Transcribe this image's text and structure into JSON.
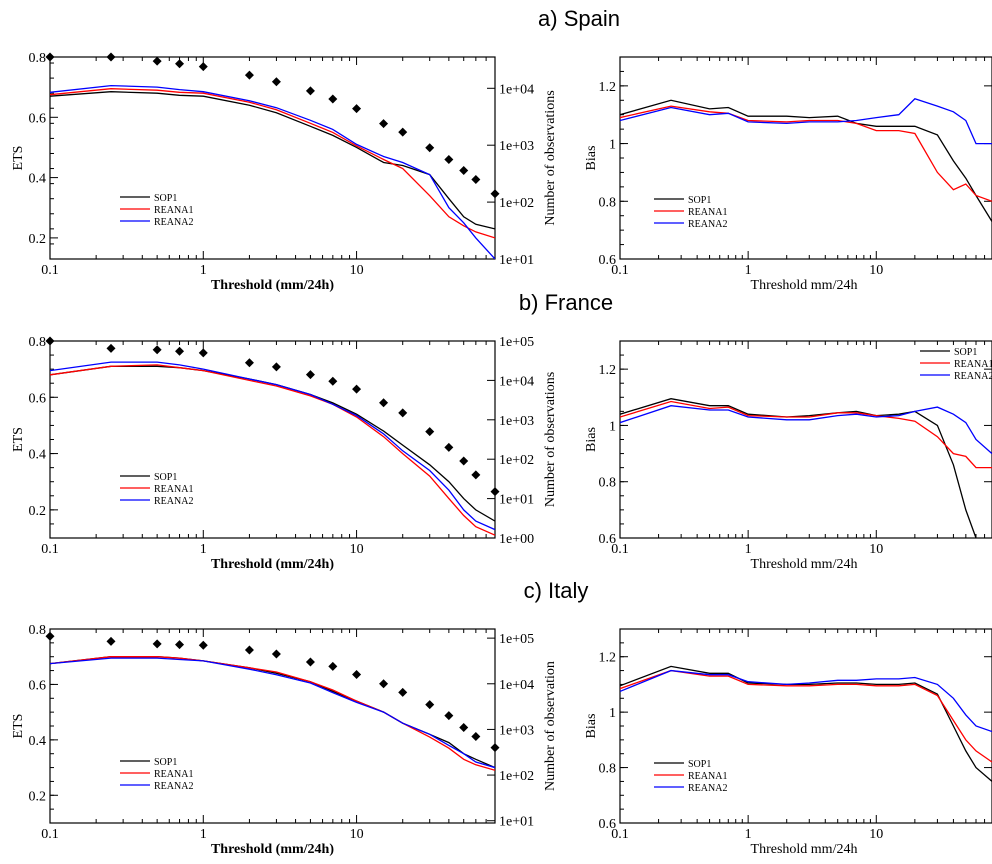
{
  "rows": [
    {
      "title": "a) Spain"
    },
    {
      "title": "b) France"
    },
    {
      "title": "c) Italy"
    }
  ],
  "colors": {
    "SOP1": "#000000",
    "REANA1": "#ff0000",
    "REANA2": "#0000ff",
    "observations": "#000000"
  },
  "chart_data": [
    {
      "type": "line",
      "panel": "a) Spain ETS",
      "xscale": "log",
      "xlim": [
        0.1,
        80
      ],
      "xticks": [
        "0.1",
        "1",
        "10"
      ],
      "xlabel": "Threshold (mm/24h)",
      "ylabel": "ETS",
      "ylim": [
        0.13,
        0.8
      ],
      "yticks": [
        "0.2",
        "0.4",
        "0.6",
        "0.8"
      ],
      "y2label": "Number of observations",
      "y2scale": "log",
      "y2ticks": [
        "1e+01",
        "1e+02",
        "1e+03",
        "1e+04"
      ],
      "legend_position": "lower-left",
      "x": [
        0.1,
        0.25,
        0.5,
        0.7,
        1,
        2,
        3,
        5,
        7,
        10,
        15,
        20,
        30,
        40,
        50,
        60,
        80
      ],
      "series": [
        {
          "name": "SOP1",
          "values": [
            0.67,
            0.685,
            0.68,
            0.673,
            0.67,
            0.64,
            0.615,
            0.57,
            0.54,
            0.5,
            0.45,
            0.44,
            0.41,
            0.33,
            0.27,
            0.245,
            0.23
          ]
        },
        {
          "name": "REANA1",
          "values": [
            0.675,
            0.695,
            0.69,
            0.683,
            0.68,
            0.65,
            0.625,
            0.58,
            0.55,
            0.505,
            0.46,
            0.43,
            0.34,
            0.27,
            0.24,
            0.22,
            0.2
          ]
        },
        {
          "name": "REANA2",
          "values": [
            0.683,
            0.705,
            0.7,
            0.692,
            0.685,
            0.655,
            0.632,
            0.59,
            0.56,
            0.51,
            0.47,
            0.45,
            0.41,
            0.3,
            0.25,
            0.2,
            0.13
          ]
        }
      ],
      "observations": {
        "name": "Number of observations",
        "x": [
          0.1,
          0.25,
          0.5,
          0.7,
          1,
          2,
          3,
          5,
          7,
          10,
          15,
          20,
          30,
          40,
          50,
          60,
          80
        ],
        "values": [
          45000,
          38000,
          30000,
          27000,
          24000,
          17000,
          13000,
          9000,
          6500,
          4400,
          2400,
          1700,
          900,
          560,
          360,
          250,
          140
        ]
      }
    },
    {
      "type": "line",
      "panel": "a) Spain Bias",
      "xscale": "log",
      "xlim": [
        0.1,
        80
      ],
      "xticks": [
        "0.1",
        "1",
        "10"
      ],
      "xlabel": "Threshold mm/24h",
      "ylabel": "Bias",
      "ylim": [
        0.6,
        1.3
      ],
      "yticks": [
        "0.6",
        "0.8",
        "1",
        "1.2"
      ],
      "legend_position": "lower-left",
      "x": [
        0.1,
        0.25,
        0.5,
        0.7,
        1,
        2,
        3,
        5,
        7,
        10,
        15,
        20,
        30,
        40,
        50,
        60,
        80
      ],
      "series": [
        {
          "name": "SOP1",
          "values": [
            1.1,
            1.15,
            1.12,
            1.125,
            1.095,
            1.095,
            1.09,
            1.095,
            1.07,
            1.06,
            1.06,
            1.06,
            1.03,
            0.94,
            0.88,
            0.82,
            0.73
          ]
        },
        {
          "name": "REANA1",
          "values": [
            1.09,
            1.13,
            1.11,
            1.105,
            1.08,
            1.075,
            1.08,
            1.08,
            1.07,
            1.045,
            1.045,
            1.035,
            0.9,
            0.84,
            0.86,
            0.82,
            0.8
          ]
        },
        {
          "name": "REANA2",
          "values": [
            1.08,
            1.125,
            1.1,
            1.105,
            1.075,
            1.07,
            1.075,
            1.075,
            1.08,
            1.09,
            1.1,
            1.155,
            1.13,
            1.11,
            1.08,
            1.0,
            1.0
          ]
        }
      ]
    },
    {
      "type": "line",
      "panel": "b) France ETS",
      "xscale": "log",
      "xlim": [
        0.1,
        80
      ],
      "xticks": [
        "0.1",
        "1",
        "10"
      ],
      "xlabel": "Threshold (mm/24h)",
      "ylabel": "ETS",
      "ylim": [
        0.1,
        0.8
      ],
      "yticks": [
        "0.2",
        "0.4",
        "0.6",
        "0.8"
      ],
      "y2label": "Number of observations",
      "y2scale": "log",
      "y2ticks": [
        "1e+00",
        "1e+01",
        "1e+02",
        "1e+03",
        "1e+04",
        "1e+05"
      ],
      "legend_position": "lower-left",
      "x": [
        0.1,
        0.25,
        0.5,
        0.7,
        1,
        2,
        3,
        5,
        7,
        10,
        15,
        20,
        30,
        40,
        50,
        60,
        80
      ],
      "series": [
        {
          "name": "SOP1",
          "values": [
            0.68,
            0.71,
            0.71,
            0.705,
            0.695,
            0.665,
            0.645,
            0.61,
            0.58,
            0.54,
            0.48,
            0.43,
            0.36,
            0.3,
            0.24,
            0.2,
            0.16
          ]
        },
        {
          "name": "REANA1",
          "values": [
            0.68,
            0.71,
            0.715,
            0.705,
            0.695,
            0.66,
            0.64,
            0.605,
            0.575,
            0.53,
            0.46,
            0.4,
            0.32,
            0.24,
            0.18,
            0.14,
            0.11
          ]
        },
        {
          "name": "REANA2",
          "values": [
            0.695,
            0.725,
            0.725,
            0.715,
            0.7,
            0.665,
            0.645,
            0.61,
            0.575,
            0.535,
            0.47,
            0.41,
            0.34,
            0.27,
            0.2,
            0.16,
            0.13
          ]
        }
      ],
      "observations": {
        "name": "Number of observations",
        "x": [
          0.1,
          0.25,
          0.5,
          0.7,
          1,
          2,
          3,
          5,
          7,
          10,
          15,
          20,
          30,
          40,
          50,
          60,
          80
        ],
        "values": [
          100000,
          65000,
          60000,
          55000,
          50000,
          28000,
          22000,
          14000,
          9500,
          6000,
          2700,
          1500,
          500,
          200,
          90,
          40,
          15
        ]
      }
    },
    {
      "type": "line",
      "panel": "b) France Bias",
      "xscale": "log",
      "xlim": [
        0.1,
        80
      ],
      "xticks": [
        "0.1",
        "1",
        "10"
      ],
      "xlabel": "Threshold mm/24h",
      "ylabel": "Bias",
      "ylim": [
        0.6,
        1.3
      ],
      "yticks": [
        "0.6",
        "0.8",
        "1",
        "1.2"
      ],
      "legend_position": "top-right",
      "x": [
        0.1,
        0.25,
        0.5,
        0.7,
        1,
        2,
        3,
        5,
        7,
        10,
        15,
        20,
        30,
        40,
        50,
        60,
        80
      ],
      "series": [
        {
          "name": "SOP1",
          "values": [
            1.04,
            1.095,
            1.07,
            1.07,
            1.04,
            1.03,
            1.035,
            1.045,
            1.05,
            1.035,
            1.04,
            1.05,
            1.0,
            0.86,
            0.7,
            0.6,
            0.55
          ]
        },
        {
          "name": "REANA1",
          "values": [
            1.03,
            1.085,
            1.06,
            1.065,
            1.035,
            1.03,
            1.03,
            1.045,
            1.045,
            1.035,
            1.025,
            1.015,
            0.96,
            0.9,
            0.89,
            0.85,
            0.85
          ]
        },
        {
          "name": "REANA2",
          "values": [
            1.01,
            1.07,
            1.055,
            1.055,
            1.03,
            1.02,
            1.02,
            1.035,
            1.04,
            1.03,
            1.035,
            1.05,
            1.065,
            1.04,
            1.01,
            0.95,
            0.9
          ]
        }
      ]
    },
    {
      "type": "line",
      "panel": "c) Italy ETS",
      "xscale": "log",
      "xlim": [
        0.1,
        80
      ],
      "xticks": [
        "0.1",
        "1",
        "10"
      ],
      "xlabel": "Threshold (mm/24h)",
      "ylabel": "ETS",
      "ylim": [
        0.1,
        0.8
      ],
      "yticks": [
        "0.2",
        "0.4",
        "0.6",
        "0.8"
      ],
      "y2label": "Number of observation",
      "y2scale": "log",
      "y2ticks": [
        "1e+01",
        "1e+02",
        "1e+03",
        "1e+04",
        "1e+05"
      ],
      "legend_position": "lower-left",
      "x": [
        0.1,
        0.25,
        0.5,
        0.7,
        1,
        2,
        3,
        5,
        7,
        10,
        15,
        20,
        30,
        40,
        50,
        60,
        80
      ],
      "series": [
        {
          "name": "SOP1",
          "values": [
            0.675,
            0.7,
            0.7,
            0.695,
            0.685,
            0.66,
            0.64,
            0.61,
            0.575,
            0.54,
            0.5,
            0.46,
            0.42,
            0.39,
            0.35,
            0.33,
            0.3
          ]
        },
        {
          "name": "REANA1",
          "values": [
            0.675,
            0.7,
            0.7,
            0.695,
            0.685,
            0.66,
            0.645,
            0.61,
            0.58,
            0.54,
            0.5,
            0.46,
            0.41,
            0.37,
            0.33,
            0.31,
            0.29
          ]
        },
        {
          "name": "REANA2",
          "values": [
            0.675,
            0.695,
            0.695,
            0.69,
            0.685,
            0.655,
            0.635,
            0.605,
            0.57,
            0.535,
            0.5,
            0.46,
            0.42,
            0.38,
            0.35,
            0.32,
            0.3
          ]
        }
      ],
      "observations": {
        "name": "Number of observation",
        "x": [
          0.1,
          0.25,
          0.5,
          0.7,
          1,
          2,
          3,
          5,
          7,
          10,
          15,
          20,
          30,
          40,
          50,
          60,
          80
        ],
        "values": [
          110000,
          85000,
          75000,
          72000,
          70000,
          55000,
          45000,
          30000,
          24000,
          16000,
          10000,
          6500,
          3500,
          2000,
          1100,
          700,
          400
        ]
      }
    },
    {
      "type": "line",
      "panel": "c) Italy Bias",
      "xscale": "log",
      "xlim": [
        0.1,
        80
      ],
      "xticks": [
        "0.1",
        "1",
        "10"
      ],
      "xlabel": "Threshold mm/24h",
      "ylabel": "Bias",
      "ylim": [
        0.6,
        1.3
      ],
      "yticks": [
        "0.6",
        "0.8",
        "1",
        "1.2"
      ],
      "legend_position": "lower-left",
      "x": [
        0.1,
        0.25,
        0.5,
        0.7,
        1,
        2,
        3,
        5,
        7,
        10,
        15,
        20,
        30,
        40,
        50,
        60,
        80
      ],
      "series": [
        {
          "name": "SOP1",
          "values": [
            1.095,
            1.165,
            1.14,
            1.14,
            1.105,
            1.1,
            1.1,
            1.105,
            1.105,
            1.1,
            1.1,
            1.105,
            1.065,
            0.95,
            0.86,
            0.8,
            0.75
          ]
        },
        {
          "name": "REANA1",
          "values": [
            1.085,
            1.15,
            1.13,
            1.13,
            1.1,
            1.095,
            1.095,
            1.1,
            1.1,
            1.095,
            1.095,
            1.1,
            1.06,
            0.97,
            0.9,
            0.86,
            0.82
          ]
        },
        {
          "name": "REANA2",
          "values": [
            1.075,
            1.15,
            1.135,
            1.135,
            1.11,
            1.1,
            1.105,
            1.115,
            1.115,
            1.12,
            1.12,
            1.125,
            1.1,
            1.05,
            0.99,
            0.95,
            0.93
          ]
        }
      ]
    }
  ]
}
